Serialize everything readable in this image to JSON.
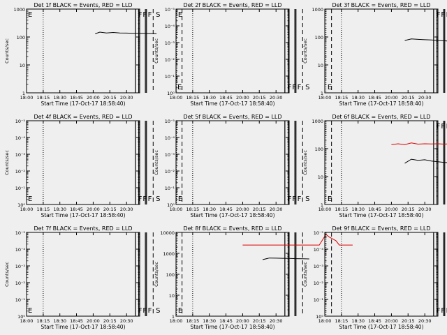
{
  "figure": {
    "xlabel": "Start Time (17-Oct-17 18:58:40)",
    "ylabel": "Counts/sec",
    "x_ticks": [
      "18:00",
      "18:15",
      "18:30",
      "18:45",
      "20:00",
      "20:15",
      "20:30"
    ],
    "marker_lines": {
      "dotted_x": [
        "18:15",
        "20:15"
      ],
      "solid_x": [
        "19:38",
        "19:41",
        "19:47",
        "19:48"
      ],
      "dashed_x": [
        "19:54",
        "20:20"
      ]
    },
    "event_labels": [
      "F",
      "F",
      "F",
      "S",
      "E"
    ],
    "colors": {
      "events": "#000000",
      "lld": "#dd0000",
      "background": "#efefef"
    }
  },
  "chart_data": [
    {
      "type": "line",
      "title": "Det 1f BLACK = Events, RED = LLD",
      "scale": "log",
      "y_ticks": [
        "1",
        "10",
        "100",
        "1000"
      ],
      "ylim": [
        1,
        1000
      ],
      "corner_label": "E",
      "series": [
        {
          "color": "black",
          "x": [
            19.03,
            19.1,
            19.2,
            19.3,
            19.4,
            19.5,
            19.6,
            19.7,
            19.8,
            19.9,
            19.95
          ],
          "y": [
            130,
            150,
            140,
            145,
            140,
            138,
            136,
            135,
            134,
            133,
            132
          ]
        }
      ]
    },
    {
      "type": "line",
      "title": "Det 2f BLACK = Events, RED = LLD",
      "scale": "log",
      "y_ticks": [
        "10⁰",
        "10⁻¹",
        "10⁻²",
        "10⁻³",
        "10⁻⁴",
        "10⁻⁵"
      ],
      "ylim": [
        1,
        100000
      ],
      "corner_label": "E",
      "series": []
    },
    {
      "type": "line",
      "title": "Det 3f BLACK = Events, RED = LLD",
      "scale": "log",
      "y_ticks": [
        "1",
        "10",
        "100",
        "1000"
      ],
      "ylim": [
        1,
        1000
      ],
      "corner_label": "",
      "series": [
        {
          "color": "black",
          "x": [
            19.2,
            19.3,
            19.4,
            19.5,
            19.6,
            19.7,
            19.8,
            19.9,
            20.0,
            20.1,
            20.15
          ],
          "y": [
            75,
            85,
            82,
            80,
            78,
            75,
            73,
            70,
            70,
            68,
            68
          ]
        }
      ]
    },
    {
      "type": "line",
      "title": "Det 4f BLACK = Events, RED = LLD",
      "scale": "log",
      "y_ticks": [
        "10⁰",
        "10⁻¹",
        "10⁻²",
        "10⁻³",
        "10⁻⁴",
        "10⁻⁵"
      ],
      "ylim": [
        1,
        100000
      ],
      "corner_label": "E",
      "series": []
    },
    {
      "type": "line",
      "title": "Det 5f BLACK = Events, RED = LLD",
      "scale": "log",
      "y_ticks": [
        "10⁰",
        "10⁻¹",
        "10⁻²",
        "10⁻³",
        "10⁻⁴",
        "10⁻⁵"
      ],
      "ylim": [
        1,
        100000
      ],
      "corner_label": "",
      "series": []
    },
    {
      "type": "line",
      "title": "Det 6f BLACK = Events, RED = LLD",
      "scale": "log",
      "y_ticks": [
        "1",
        "10",
        "100",
        "1000"
      ],
      "ylim": [
        1,
        1000
      ],
      "corner_label": "",
      "series": [
        {
          "color": "red",
          "x": [
            19.0,
            19.1,
            19.2,
            19.3,
            19.4,
            19.5,
            19.6,
            19.7,
            19.8,
            19.88,
            19.92,
            19.98,
            20.05,
            20.12
          ],
          "y": [
            140,
            150,
            140,
            160,
            145,
            150,
            148,
            150,
            145,
            150,
            900,
            960,
            950,
            940
          ]
        },
        {
          "color": "red",
          "x": [
            20.32,
            20.36,
            20.45,
            20.55,
            20.65
          ],
          "y": [
            850,
            180,
            170,
            170,
            168
          ]
        },
        {
          "color": "black",
          "x": [
            19.2,
            19.3,
            19.4,
            19.5,
            19.6,
            19.7,
            19.8,
            19.87
          ],
          "y": [
            30,
            42,
            38,
            40,
            36,
            34,
            32,
            31
          ]
        }
      ]
    },
    {
      "type": "line",
      "title": "Det 7f BLACK = Events, RED = LLD",
      "scale": "log",
      "y_ticks": [
        "10⁰",
        "10⁻¹",
        "10⁻²",
        "10⁻³",
        "10⁻⁴",
        "10⁻⁵"
      ],
      "ylim": [
        1,
        100000
      ],
      "corner_label": "E",
      "series": []
    },
    {
      "type": "line",
      "title": "Det 8f BLACK = Events, RED = LLD",
      "scale": "log",
      "y_ticks": [
        "1",
        "10",
        "100",
        "1000",
        "10000"
      ],
      "ylim": [
        1,
        10000
      ],
      "corner_label": "",
      "series": [
        {
          "color": "red",
          "x": [
            19.0,
            19.2,
            19.4,
            19.6,
            19.75,
            19.85,
            19.95,
            20.05,
            20.15,
            20.25,
            20.3,
            20.4,
            20.45,
            20.55,
            20.65
          ],
          "y": [
            2500,
            2500,
            2500,
            2500,
            2500,
            2500,
            2500,
            2500,
            2500,
            8000,
            6000,
            4000,
            2500,
            2500,
            2500
          ]
        },
        {
          "color": "black",
          "x": [
            19.3,
            19.4,
            19.5,
            19.6,
            19.7,
            19.8,
            19.9,
            20.0
          ],
          "y": [
            500,
            600,
            590,
            580,
            570,
            560,
            550,
            540
          ]
        }
      ]
    },
    {
      "type": "line",
      "title": "Det 9f BLACK = Events, RED = LLD",
      "scale": "log",
      "y_ticks": [
        "10⁰",
        "10⁻¹",
        "10⁻²",
        "10⁻³",
        "10⁻⁴",
        "10⁻⁵"
      ],
      "ylim": [
        1,
        100000
      ],
      "corner_label": "",
      "series": []
    }
  ]
}
